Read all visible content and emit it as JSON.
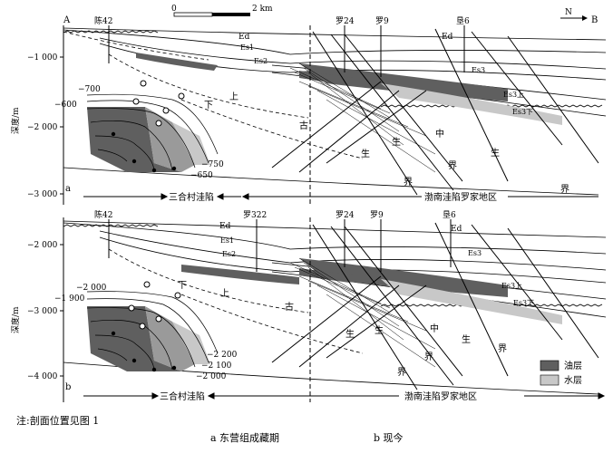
{
  "scale": {
    "zero": "0",
    "length": "2 km"
  },
  "north": "N",
  "end_a": "A",
  "end_b": "B",
  "ylabel": "深度/m",
  "panel_a": {
    "letter": "a",
    "depth_ticks": [
      "−1 000",
      "−2 000",
      "−3 000"
    ],
    "wells": [
      "陈42",
      "罗24",
      "罗9",
      "垦6"
    ],
    "contours_left": [
      "−700",
      "−600"
    ],
    "contours_right": [
      "−750",
      "−650"
    ],
    "strata": [
      "Ed",
      "Es1",
      "Es2",
      "Es3",
      "Es3上",
      "Es3下"
    ],
    "zones": [
      "上",
      "下",
      "古",
      "生",
      "中",
      "生",
      "界",
      "界",
      "生",
      "界"
    ],
    "bottom_left": "三合村洼陷",
    "bottom_right": "渤南洼陷罗家地区"
  },
  "panel_b": {
    "letter": "b",
    "depth_ticks": [
      "−2 000",
      "−3 000",
      "−4 000"
    ],
    "wells": [
      "陈42",
      "罗322",
      "罗24",
      "罗9",
      "垦6"
    ],
    "contours_left": [
      "−2 000",
      "−1 900"
    ],
    "contours_right": [
      "−2 200",
      "−2 100",
      "−2 000"
    ],
    "strata": [
      "Ed",
      "Es1",
      "Es2",
      "Es3",
      "Es3上",
      "Es3下"
    ],
    "zones": [
      "下",
      "上",
      "古",
      "生",
      "中",
      "生",
      "界",
      "界",
      "生",
      "界"
    ],
    "bottom_left": "三合村洼陷",
    "bottom_right": "渤南洼陷罗家地区"
  },
  "legend": [
    {
      "label": "油层",
      "color": "#5f5f5f"
    },
    {
      "label": "水层",
      "color": "#c8c8c8"
    }
  ],
  "note": "注:剖面位置见图 1",
  "caption_a": "a 东营组成藏期",
  "caption_b": "b 现今"
}
